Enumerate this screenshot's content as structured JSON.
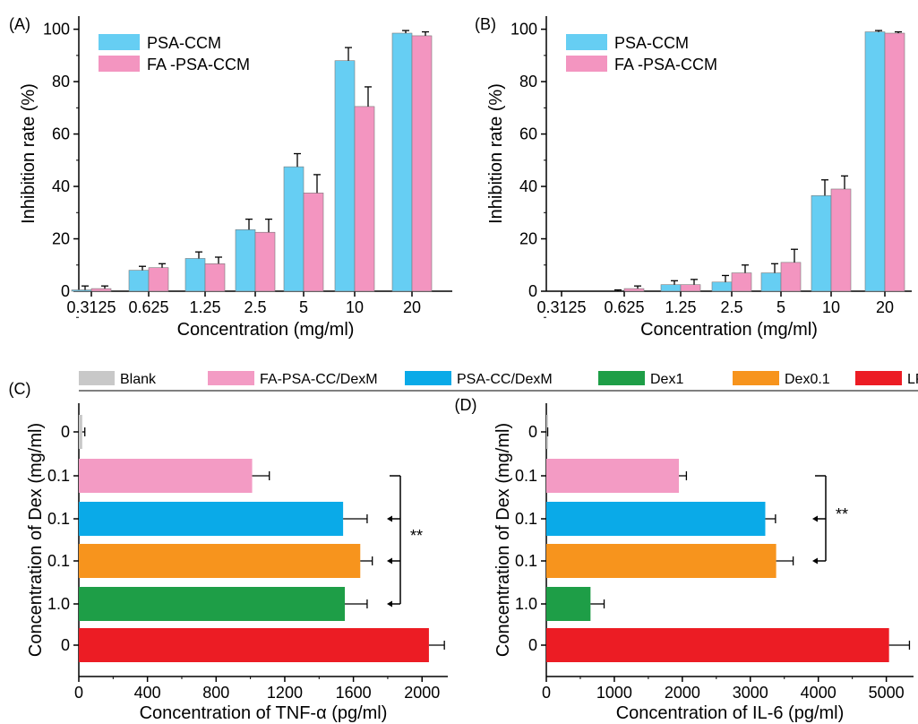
{
  "chart_data": [
    {
      "panel_label": "(A)",
      "type": "bar",
      "orientation": "vertical",
      "categories": [
        "0.3125",
        "0.625",
        "1.25",
        "2.5",
        "5",
        "10",
        "20"
      ],
      "series": [
        {
          "name": "PSA-CCM",
          "values": [
            0.5,
            8.0,
            12.5,
            23.5,
            47.5,
            88.0,
            98.5
          ],
          "errors": [
            1.5,
            1.5,
            2.5,
            4.0,
            5.0,
            5.0,
            1.0
          ]
        },
        {
          "name": "FA -PSA-CCM",
          "values": [
            1.0,
            9.0,
            10.5,
            22.5,
            37.5,
            70.5,
            97.5
          ],
          "errors": [
            1.0,
            1.5,
            2.5,
            5.0,
            7.0,
            7.5,
            1.5
          ]
        }
      ],
      "xlabel": "Concentration (mg/ml)",
      "ylabel": "Inhibition rate (%)",
      "ylim": [
        0,
        105
      ],
      "yticks": [
        "0",
        "20",
        "40",
        "60",
        "80",
        "100"
      ],
      "legend": "top-left"
    },
    {
      "panel_label": "(B)",
      "type": "bar",
      "orientation": "vertical",
      "categories": [
        "0.3125",
        "0.625",
        "1.25",
        "2.5",
        "5",
        "10",
        "20"
      ],
      "series": [
        {
          "name": "PSA-CCM",
          "values": [
            0,
            0,
            2.5,
            3.5,
            7.0,
            36.5,
            99.0
          ],
          "errors": [
            0,
            0.5,
            1.5,
            2.5,
            3.5,
            6.0,
            0.5
          ]
        },
        {
          "name": "FA -PSA-CCM",
          "values": [
            0,
            1.0,
            2.5,
            7.0,
            11.0,
            39.0,
            98.5
          ],
          "errors": [
            0,
            1.0,
            2.0,
            3.0,
            5.0,
            5.0,
            0.5
          ]
        }
      ],
      "xlabel": "Concentration (mg/ml)",
      "ylabel": "Inhibition rate (%)",
      "ylim": [
        0,
        105
      ],
      "yticks": [
        "0",
        "20",
        "40",
        "60",
        "80",
        "100"
      ],
      "legend": "top-left"
    },
    {
      "panel_label": "(C)",
      "type": "bar",
      "orientation": "horizontal",
      "categories": [
        "0",
        "0.1",
        "0.1",
        "0.1",
        "1.0",
        "0"
      ],
      "groups": [
        "Blank",
        "FA-PSA-CC/DexM",
        "PSA-CC/DexM",
        "Dex0.1",
        "Dex1",
        "LPS"
      ],
      "values": [
        20,
        1010,
        1540,
        1640,
        1550,
        2040
      ],
      "errors": [
        15,
        100,
        140,
        70,
        130,
        90
      ],
      "xlabel": "Concentration of TNF-α (pg/ml)",
      "ylabel": "Concentration of Dex (mg/ml)",
      "xlim": [
        0,
        2150
      ],
      "xticks": [
        "0",
        "400",
        "800",
        "1200",
        "1600",
        "2000"
      ],
      "annotation": "**"
    },
    {
      "panel_label": "(D)",
      "type": "bar",
      "orientation": "horizontal",
      "categories": [
        "0",
        "0.1",
        "0.1",
        "0.1",
        "1.0",
        "0"
      ],
      "groups": [
        "Blank",
        "FA-PSA-CC/DexM",
        "PSA-CC/DexM",
        "Dex0.1",
        "Dex1",
        "LPS"
      ],
      "values": [
        10,
        1950,
        3220,
        3380,
        650,
        5040
      ],
      "errors": [
        10,
        110,
        150,
        250,
        200,
        300
      ],
      "xlabel": "Concentration of IL-6 (pg/ml)",
      "ylabel": "Concentration of Dex (mg/ml)",
      "xlim": [
        0,
        5400
      ],
      "xticks": [
        "0",
        "1000",
        "2000",
        "3000",
        "4000",
        "5000"
      ],
      "annotation": "**"
    }
  ],
  "shared_legend": [
    {
      "name": "Blank",
      "color": "#c8c8c8"
    },
    {
      "name": "FA-PSA-CC/DexM",
      "color": "#f39bc4"
    },
    {
      "name": "PSA-CC/DexM",
      "color": "#0aaae8"
    },
    {
      "name": "Dex1",
      "color": "#1e9e47"
    },
    {
      "name": "Dex0.1",
      "color": "#f7941d"
    },
    {
      "name": "LPS",
      "color": "#ec1c24"
    }
  ],
  "colors": {
    "psa_ccm": "#66cef3",
    "fa_psa_ccm": "#f395c0",
    "bar_outline": "#7a7a7a"
  }
}
